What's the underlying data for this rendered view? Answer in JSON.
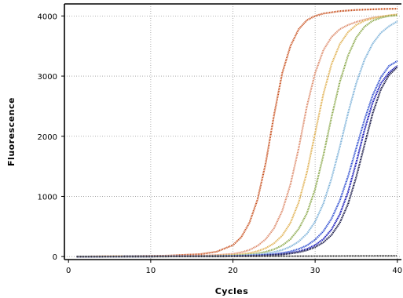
{
  "chart_data": {
    "type": "line",
    "title": "",
    "xlabel": "Cycles",
    "ylabel": "Fluorescence",
    "xlim": [
      -0.5,
      40.5
    ],
    "ylim": [
      -50,
      4200
    ],
    "xticks": [
      0,
      10,
      20,
      30,
      40
    ],
    "yticks": [
      0,
      1000,
      2000,
      3000,
      4000
    ],
    "grid": true,
    "legend": "none",
    "x": [
      1,
      4,
      8,
      12,
      16,
      18,
      20,
      21,
      22,
      23,
      24,
      25,
      26,
      27,
      28,
      29,
      30,
      31,
      32,
      33,
      34,
      35,
      36,
      37,
      38,
      39,
      40
    ],
    "series": [
      {
        "color": "#c8501e",
        "values": [
          0,
          3,
          8,
          15,
          40,
          80,
          190,
          320,
          560,
          950,
          1560,
          2350,
          3050,
          3500,
          3780,
          3930,
          4000,
          4040,
          4060,
          4080,
          4090,
          4100,
          4105,
          4110,
          4115,
          4118,
          4120
        ]
      },
      {
        "color": "#dd8a6a",
        "values": [
          0,
          2,
          5,
          8,
          15,
          25,
          45,
          70,
          110,
          180,
          290,
          470,
          760,
          1200,
          1800,
          2500,
          3050,
          3430,
          3650,
          3780,
          3850,
          3900,
          3940,
          3970,
          3990,
          4005,
          4020
        ]
      },
      {
        "color": "#e0b050",
        "values": [
          0,
          2,
          4,
          6,
          10,
          15,
          25,
          38,
          58,
          90,
          140,
          220,
          350,
          560,
          900,
          1400,
          2050,
          2700,
          3200,
          3530,
          3730,
          3850,
          3920,
          3960,
          3990,
          4010,
          4025
        ]
      },
      {
        "color": "#8aa84a",
        "values": [
          0,
          1,
          3,
          5,
          8,
          12,
          18,
          25,
          35,
          52,
          80,
          120,
          185,
          290,
          460,
          720,
          1120,
          1680,
          2320,
          2900,
          3340,
          3640,
          3820,
          3920,
          3970,
          4000,
          4010
        ]
      },
      {
        "color": "#7ab0d8",
        "values": [
          0,
          1,
          2,
          4,
          6,
          9,
          13,
          18,
          25,
          35,
          50,
          75,
          110,
          165,
          250,
          380,
          580,
          880,
          1300,
          1820,
          2380,
          2880,
          3270,
          3540,
          3720,
          3830,
          3910
        ]
      },
      {
        "color": "#2a4ad0",
        "values": [
          0,
          1,
          2,
          3,
          5,
          7,
          10,
          13,
          17,
          22,
          30,
          42,
          60,
          85,
          125,
          185,
          280,
          420,
          630,
          930,
          1330,
          1800,
          2270,
          2680,
          2980,
          3170,
          3250
        ]
      },
      {
        "color": "#0a0ab4",
        "values": [
          0,
          1,
          2,
          3,
          4,
          6,
          8,
          10,
          13,
          17,
          22,
          30,
          42,
          60,
          85,
          125,
          190,
          290,
          450,
          700,
          1070,
          1560,
          2100,
          2560,
          2880,
          3060,
          3170
        ]
      },
      {
        "color": "#101040",
        "values": [
          0,
          1,
          2,
          3,
          4,
          5,
          7,
          9,
          11,
          14,
          19,
          26,
          36,
          51,
          72,
          105,
          155,
          235,
          360,
          560,
          870,
          1320,
          1850,
          2380,
          2780,
          3020,
          3150
        ]
      },
      {
        "color": "#404040",
        "values": [
          0,
          0,
          1,
          1,
          2,
          2,
          3,
          3,
          4,
          4,
          5,
          5,
          6,
          6,
          7,
          7,
          8,
          8,
          9,
          9,
          10,
          10,
          11,
          11,
          12,
          12,
          13
        ]
      }
    ]
  }
}
